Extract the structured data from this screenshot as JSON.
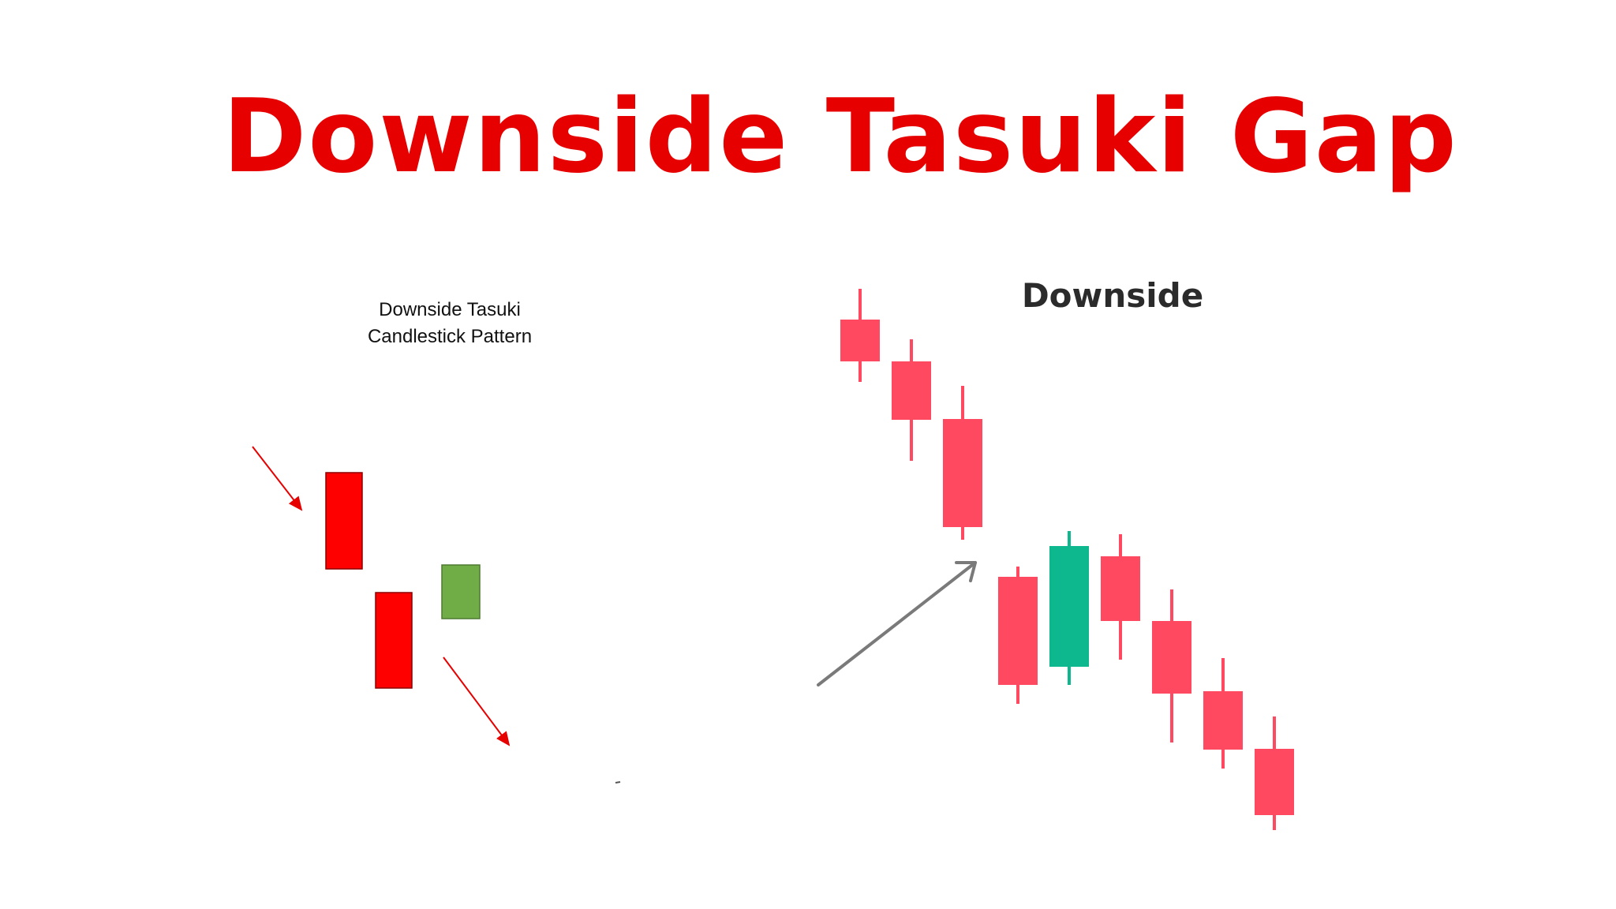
{
  "title": "Downside Tasuki Gap",
  "left_panel": {
    "caption_line1": "Downside Tasuki",
    "caption_line2": "Candlestick Pattern",
    "candles": [
      {
        "kind": "bearish",
        "color": "#ff0000"
      },
      {
        "kind": "bearish",
        "color": "#ff0000"
      },
      {
        "kind": "bullish",
        "color": "#70ad47"
      }
    ],
    "arrow_color": "#e60000"
  },
  "right_panel": {
    "heading": "Downside",
    "bearish_color": "#ff4961",
    "bullish_color": "#0db88f",
    "arrow_color": "#7a7a7a",
    "candles": [
      {
        "kind": "bearish"
      },
      {
        "kind": "bearish"
      },
      {
        "kind": "bearish"
      },
      {
        "kind": "bearish"
      },
      {
        "kind": "bullish"
      },
      {
        "kind": "bearish"
      },
      {
        "kind": "bearish"
      },
      {
        "kind": "bearish"
      },
      {
        "kind": "bearish"
      }
    ]
  },
  "colors": {
    "title": "#e60000"
  }
}
